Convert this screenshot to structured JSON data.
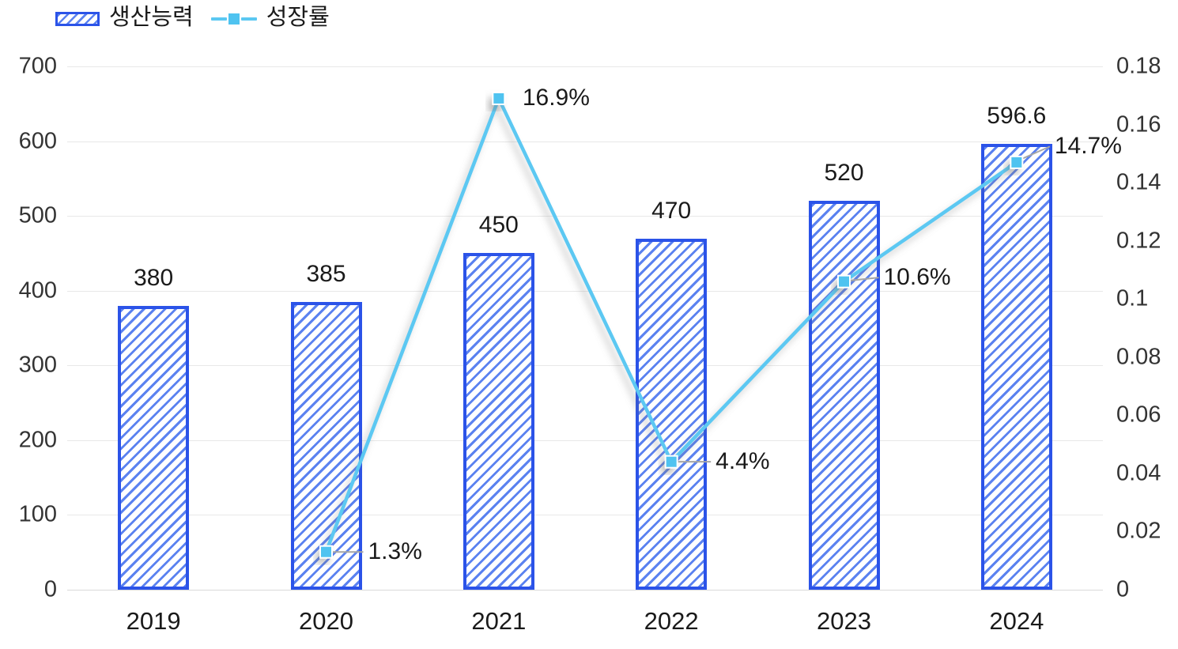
{
  "chart_data": {
    "type": "combo",
    "categories": [
      "2019",
      "2020",
      "2021",
      "2022",
      "2023",
      "2024"
    ],
    "series": [
      {
        "name": "생산능력",
        "type": "bar",
        "axis": "left",
        "values": [
          380,
          385,
          450,
          470,
          520,
          596.6
        ],
        "labels": [
          "380",
          "385",
          "450",
          "470",
          "520",
          "596.6"
        ]
      },
      {
        "name": "성장률",
        "type": "line",
        "axis": "right",
        "values": [
          null,
          0.013,
          0.169,
          0.044,
          0.106,
          0.147
        ],
        "labels": [
          null,
          "1.3%",
          "16.9%",
          "4.4%",
          "10.6%",
          "14.7%"
        ],
        "annotations": [
          null,
          {
            "dx": 53,
            "dy": 0,
            "leader": true
          },
          {
            "dx": 30,
            "dy": 0,
            "leader": false
          },
          {
            "dx": 56,
            "dy": 0,
            "leader": true
          },
          {
            "dx": 50,
            "dy": -5,
            "leader": true
          },
          {
            "dx": 48,
            "dy": -20,
            "leader": true
          }
        ]
      }
    ],
    "left_axis": {
      "min": 0,
      "max": 700,
      "ticks": [
        "0",
        "100",
        "200",
        "300",
        "400",
        "500",
        "600",
        "700"
      ]
    },
    "right_axis": {
      "min": 0,
      "max": 0.18,
      "ticks": [
        "0",
        "0.02",
        "0.04",
        "0.06",
        "0.08",
        "0.1",
        "0.12",
        "0.14",
        "0.16",
        "0.18"
      ]
    },
    "grid": true,
    "legend_position": "top-left",
    "title": ""
  },
  "colors": {
    "bar_border": "#2B53E8",
    "bar_hatch": "#5B82F0",
    "line": "#5BC8F2",
    "marker_fill": "#4FC3F0",
    "marker_stroke": "#FFFFFF",
    "leader": "#A6A6A6",
    "grid": "#E8E8E8",
    "text": "#1A1A1A"
  }
}
